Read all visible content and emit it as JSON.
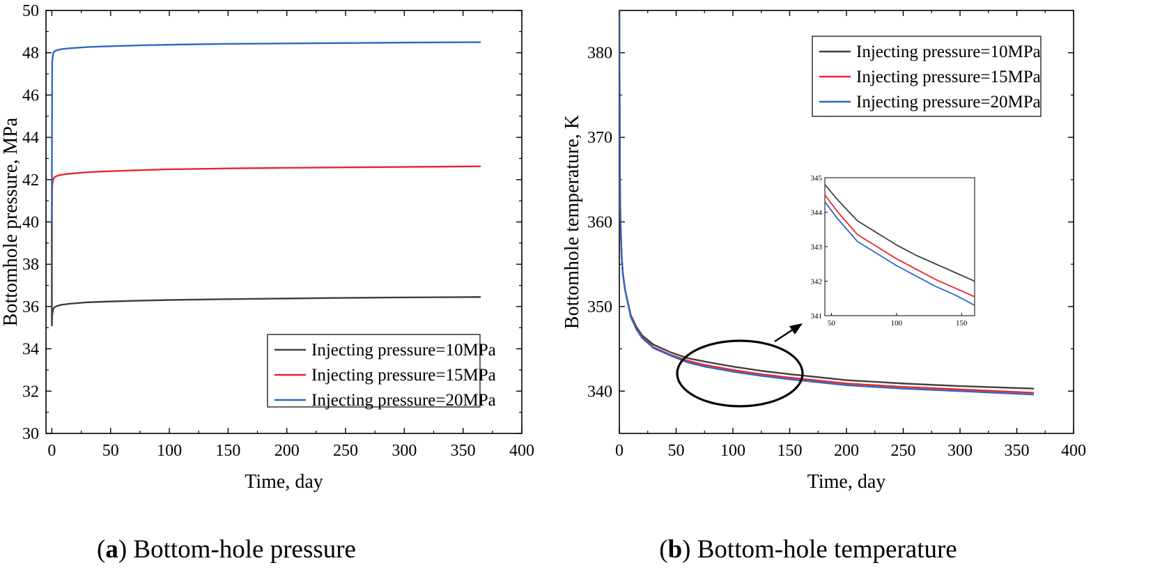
{
  "chart_data": [
    {
      "type": "line",
      "panel": "a",
      "caption": {
        "letter": "a",
        "open": "(",
        "close": ")",
        "text": " Bottom-hole pressure"
      },
      "title": "",
      "xlabel": "Time, day",
      "ylabel": "Bottomhole pressure, MPa",
      "xlim": [
        -5,
        400
      ],
      "ylim": [
        30,
        50
      ],
      "xticks": [
        0,
        50,
        100,
        150,
        200,
        250,
        300,
        350,
        400
      ],
      "yticks": [
        30,
        32,
        34,
        36,
        38,
        40,
        42,
        44,
        46,
        48,
        50
      ],
      "legend_position": "bottom-right",
      "series": [
        {
          "name": "Injecting pressure=10MPa",
          "color": "#3f3f3f",
          "x": [
            0,
            0.01,
            0.3,
            1,
            2,
            4,
            8,
            15,
            30,
            50,
            75,
            100,
            150,
            200,
            250,
            300,
            365
          ],
          "y": [
            40,
            35.1,
            35.6,
            35.85,
            35.95,
            36.02,
            36.08,
            36.13,
            36.2,
            36.24,
            36.28,
            36.31,
            36.35,
            36.38,
            36.41,
            36.43,
            36.45
          ]
        },
        {
          "name": "Injecting pressure=15MPa",
          "color": "#e8262b",
          "x": [
            0,
            0.01,
            0.3,
            1,
            2,
            4,
            8,
            15,
            30,
            50,
            75,
            100,
            150,
            200,
            250,
            300,
            365
          ],
          "y": [
            40,
            40.3,
            41.7,
            42.0,
            42.1,
            42.17,
            42.23,
            42.28,
            42.35,
            42.4,
            42.45,
            42.49,
            42.53,
            42.56,
            42.58,
            42.6,
            42.63
          ]
        },
        {
          "name": "Injecting pressure=20MPa",
          "color": "#2e67c5",
          "x": [
            0,
            0.01,
            0.3,
            1,
            2,
            4,
            8,
            15,
            30,
            50,
            75,
            100,
            150,
            200,
            250,
            300,
            365
          ],
          "y": [
            40,
            42.0,
            47.6,
            47.95,
            48.05,
            48.12,
            48.17,
            48.21,
            48.27,
            48.31,
            48.35,
            48.38,
            48.42,
            48.44,
            48.46,
            48.48,
            48.5
          ]
        }
      ]
    },
    {
      "type": "line",
      "panel": "b",
      "caption": {
        "letter": "b",
        "open": "(",
        "close": ")",
        "text": " Bottom-hole temperature"
      },
      "title": "",
      "xlabel": "Time, day",
      "ylabel": "Bottomhole temperature, K",
      "xlim": [
        0,
        400
      ],
      "ylim": [
        335,
        385
      ],
      "xticks": [
        0,
        50,
        100,
        150,
        200,
        250,
        300,
        350,
        400
      ],
      "yticks": [
        340,
        350,
        360,
        370,
        380
      ],
      "legend_position": "top-right",
      "annotation": "ellipse around 50–160 days with arrow pointing to zoomed inset",
      "series": [
        {
          "name": "Injecting pressure=10MPa",
          "color": "#3f3f3f",
          "x": [
            0,
            0.5,
            1,
            2,
            3,
            5,
            10,
            15,
            20,
            30,
            45,
            60,
            75,
            100,
            125,
            150,
            200,
            250,
            300,
            365
          ],
          "y": [
            385,
            365,
            360,
            356,
            354,
            352,
            349,
            347.6,
            346.6,
            345.5,
            344.6,
            343.9,
            343.5,
            342.9,
            342.4,
            342.0,
            341.3,
            340.9,
            340.6,
            340.3
          ]
        },
        {
          "name": "Injecting pressure=15MPa",
          "color": "#e8262b",
          "x": [
            0,
            0.5,
            1,
            2,
            3,
            5,
            10,
            15,
            20,
            30,
            45,
            60,
            75,
            100,
            125,
            150,
            200,
            250,
            300,
            365
          ],
          "y": [
            385,
            365,
            360,
            356,
            354,
            352,
            348.9,
            347.4,
            346.4,
            345.2,
            344.3,
            343.6,
            343.1,
            342.5,
            342.0,
            341.6,
            340.9,
            340.5,
            340.2,
            339.8
          ]
        },
        {
          "name": "Injecting pressure=20MPa",
          "color": "#2e67c5",
          "x": [
            0,
            0.5,
            1,
            2,
            3,
            5,
            10,
            15,
            20,
            30,
            45,
            60,
            75,
            100,
            125,
            150,
            200,
            250,
            300,
            365
          ],
          "y": [
            385,
            365,
            360,
            356,
            354,
            352,
            348.8,
            347.3,
            346.3,
            345.1,
            344.2,
            343.4,
            342.9,
            342.3,
            341.8,
            341.4,
            340.7,
            340.3,
            340.0,
            339.6
          ]
        }
      ],
      "inset": {
        "xlim": [
          45,
          160
        ],
        "ylim": [
          341,
          345
        ],
        "xticks": [
          50,
          100,
          150
        ],
        "yticks": [
          341,
          342,
          343,
          344,
          345
        ],
        "series": [
          {
            "name": "Injecting pressure=10MPa",
            "color": "#3f3f3f",
            "x": [
              45,
              55,
              70,
              85,
              100,
              115,
              130,
              145,
              160
            ],
            "y": [
              344.8,
              344.35,
              343.75,
              343.4,
              343.05,
              342.75,
              342.5,
              342.25,
              342.0
            ]
          },
          {
            "name": "Injecting pressure=15MPa",
            "color": "#e8262b",
            "x": [
              45,
              55,
              70,
              85,
              100,
              115,
              130,
              145,
              160
            ],
            "y": [
              344.5,
              344.0,
              343.35,
              343.0,
              342.65,
              342.35,
              342.05,
              341.8,
              341.55
            ]
          },
          {
            "name": "Injecting pressure=20MPa",
            "color": "#2e67c5",
            "x": [
              45,
              55,
              70,
              85,
              100,
              115,
              130,
              145,
              160
            ],
            "y": [
              344.3,
              343.8,
              343.15,
              342.8,
              342.45,
              342.15,
              341.85,
              341.6,
              341.3
            ]
          }
        ]
      }
    }
  ]
}
